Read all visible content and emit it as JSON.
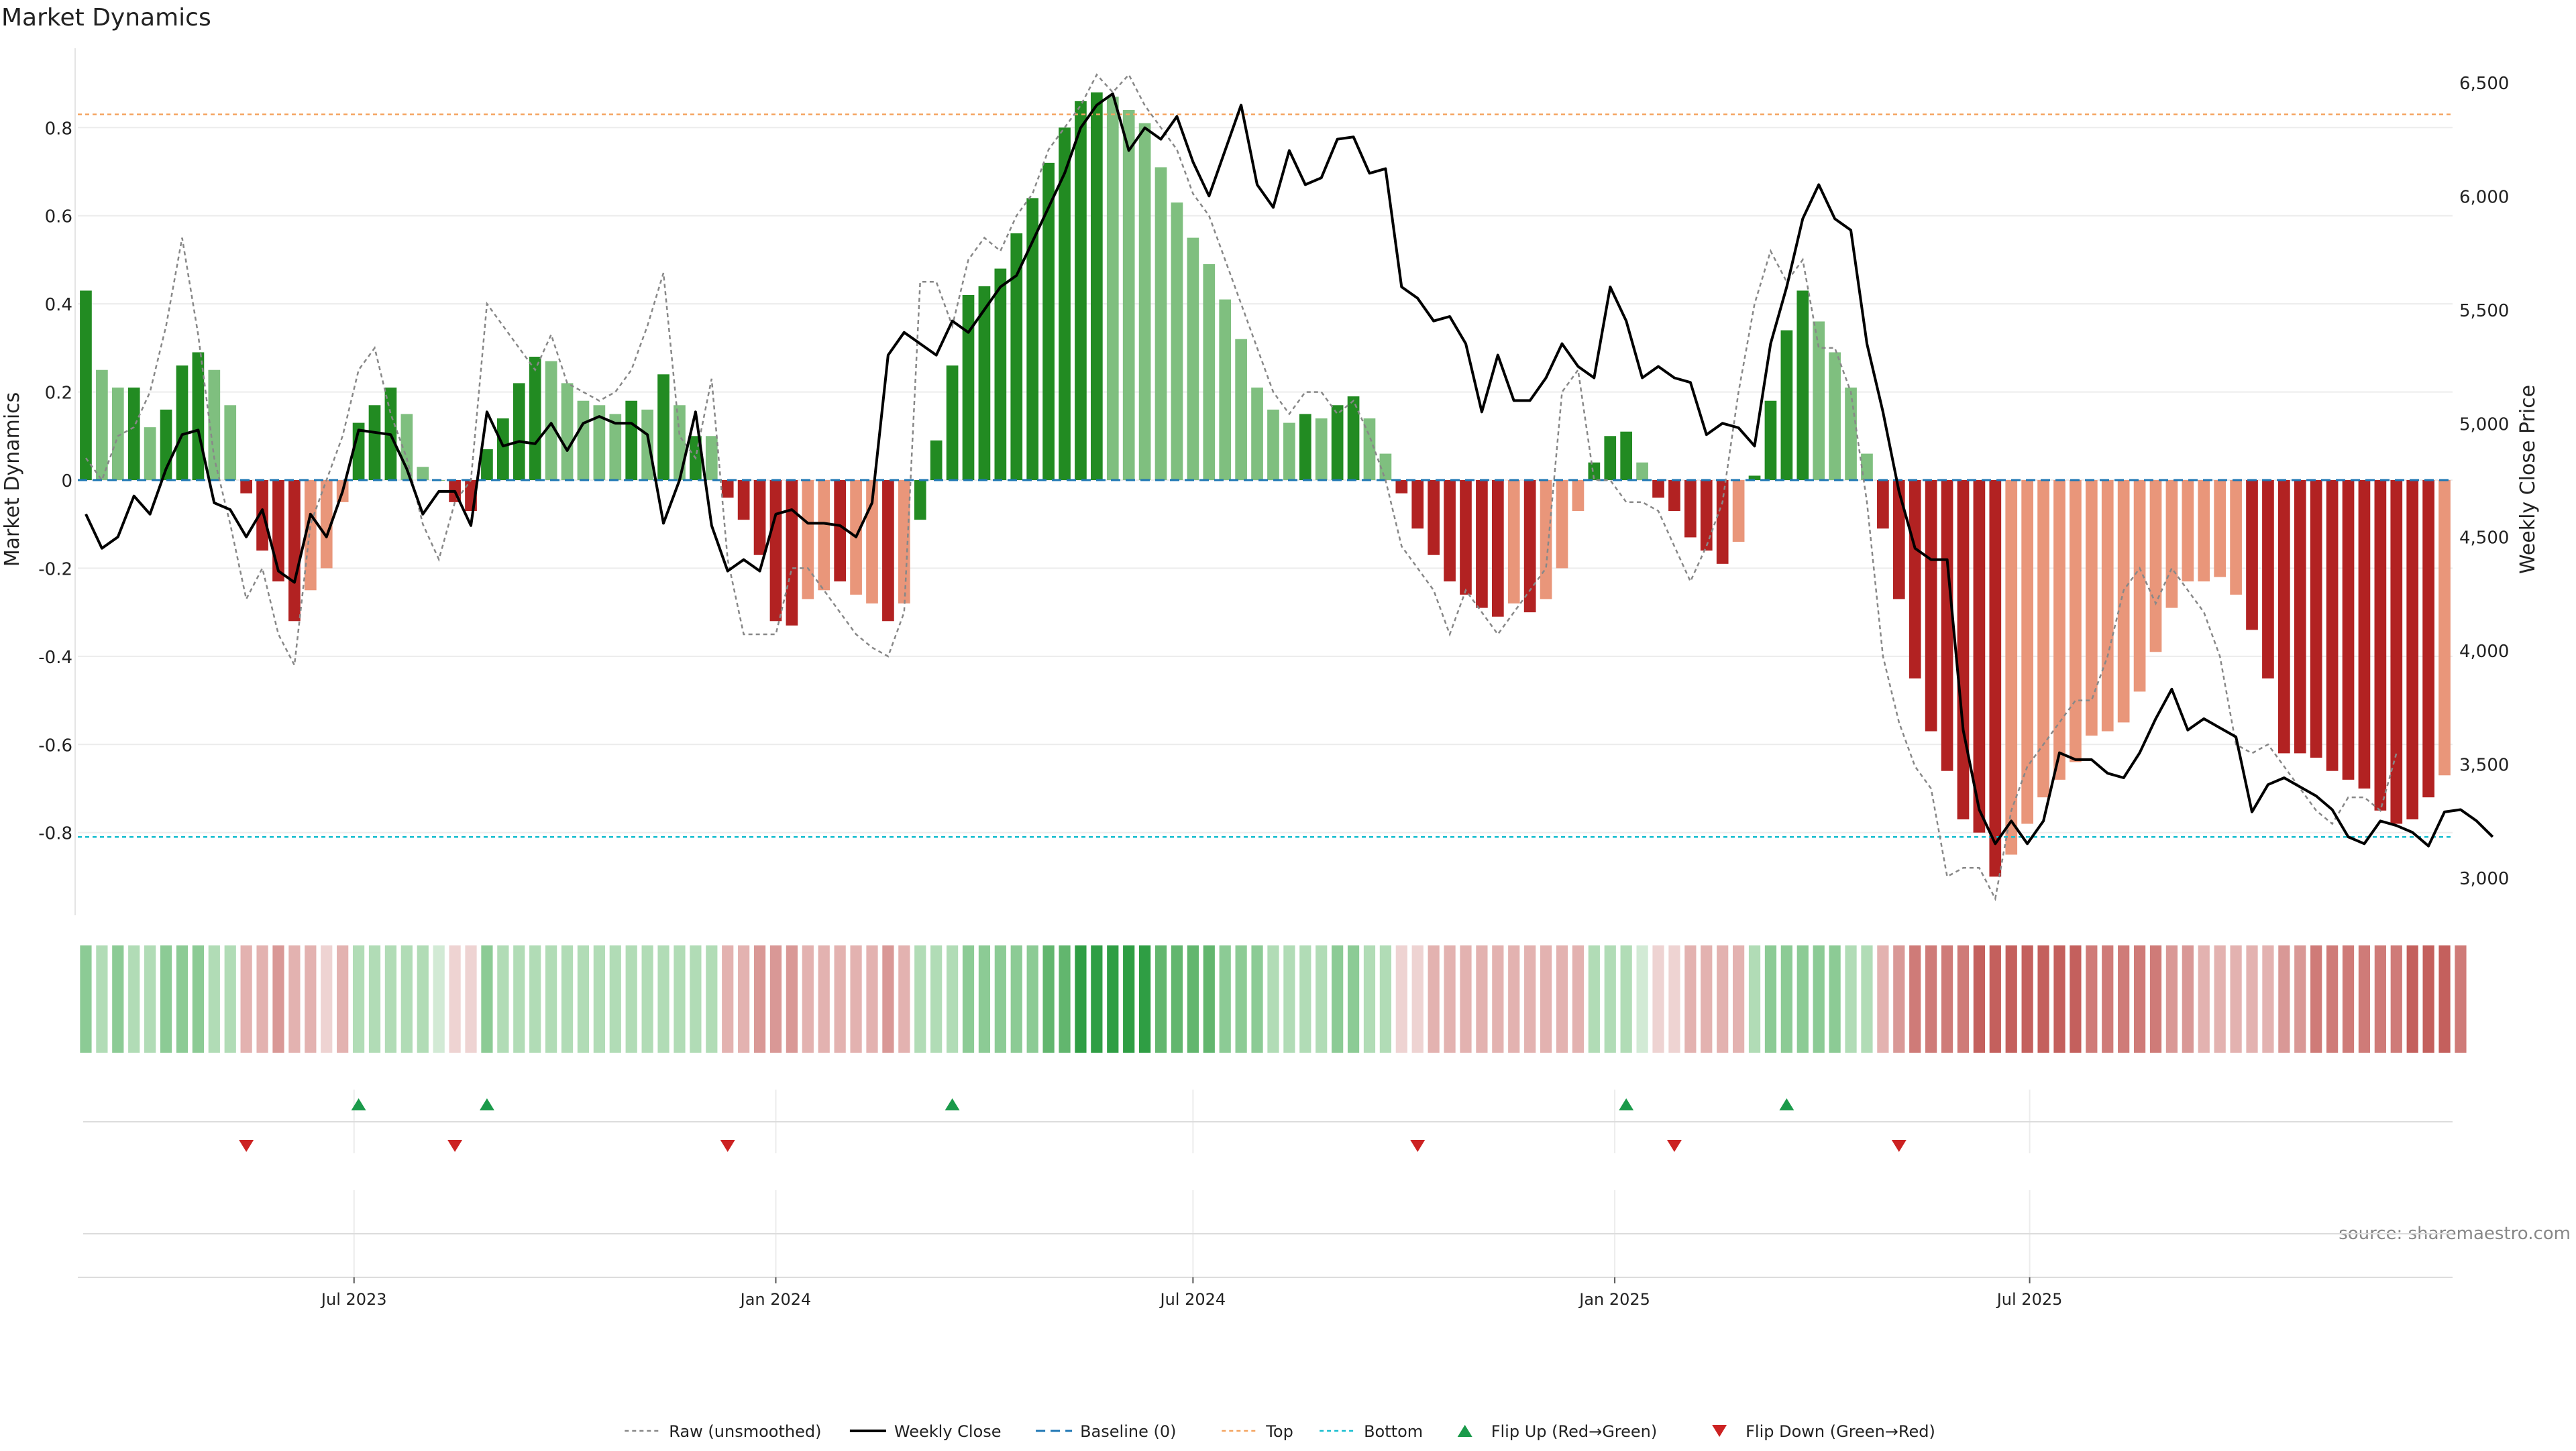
{
  "chart_data": {
    "type": "bar",
    "title": "Market Dynamics",
    "ylabel": "Market Dynamics",
    "y2label": "Weekly Close Price",
    "ylim": [
      -0.98,
      0.98
    ],
    "y2lim": [
      2850,
      6650
    ],
    "x_start": "2023-03-06",
    "x_step_days": 7,
    "y_ticks": [
      "-0.8",
      "-0.6",
      "-0.4",
      "-0.2",
      "0",
      "0.2",
      "0.4",
      "0.6",
      "0.8"
    ],
    "y2_ticks": [
      "3,000",
      "3,500",
      "4,000",
      "4,500",
      "5,000",
      "5,500",
      "6,000",
      "6,500"
    ],
    "x_ticks": [
      {
        "label": "Jul 2023",
        "date": "2023-07-01"
      },
      {
        "label": "Jan 2024",
        "date": "2024-01-01"
      },
      {
        "label": "Jul 2024",
        "date": "2024-07-01"
      },
      {
        "label": "Jan 2025",
        "date": "2025-01-01"
      },
      {
        "label": "Jul 2025",
        "date": "2025-07-01"
      }
    ],
    "top_level": 0.83,
    "bottom_level": -0.81,
    "baseline": 0,
    "grid": true,
    "colors": {
      "up_strong": "#228b22",
      "up_weak": "#7fbf7f",
      "down_strong": "#b22222",
      "down_weak": "#e9967a",
      "close": "#000000",
      "raw": "#888888",
      "baseline": "#1f77b4",
      "top": "#f4a460",
      "bottom": "#17becf",
      "flip_up": "#1a9a4a",
      "flip_down": "#cc2222"
    },
    "series": [
      {
        "name": "Market Dynamics",
        "values": [
          0.43,
          0.25,
          0.21,
          0.21,
          0.12,
          0.16,
          0.26,
          0.29,
          0.25,
          0.17,
          -0.03,
          -0.16,
          -0.23,
          -0.32,
          -0.25,
          -0.2,
          -0.05,
          0.13,
          0.17,
          0.21,
          0.15,
          0.03,
          0.0,
          -0.05,
          -0.07,
          0.07,
          0.14,
          0.22,
          0.28,
          0.27,
          0.22,
          0.18,
          0.17,
          0.15,
          0.18,
          0.16,
          0.24,
          0.17,
          0.1,
          0.1,
          -0.04,
          -0.09,
          -0.17,
          -0.32,
          -0.33,
          -0.27,
          -0.25,
          -0.23,
          -0.26,
          -0.28,
          -0.32,
          -0.28,
          -0.09,
          0.09,
          0.26,
          0.42,
          0.44,
          0.48,
          0.56,
          0.64,
          0.72,
          0.8,
          0.86,
          0.88,
          0.87,
          0.84,
          0.81,
          0.71,
          0.63,
          0.55,
          0.49,
          0.41,
          0.32,
          0.21,
          0.16,
          0.13,
          0.15,
          0.14,
          0.17,
          0.19,
          0.14,
          0.06,
          -0.03,
          -0.11,
          -0.17,
          -0.23,
          -0.26,
          -0.29,
          -0.31,
          -0.28,
          -0.3,
          -0.27,
          -0.2,
          -0.07,
          0.04,
          0.1,
          0.11,
          0.04,
          -0.04,
          -0.07,
          -0.13,
          -0.16,
          -0.19,
          -0.14,
          0.01,
          0.18,
          0.34,
          0.43,
          0.36,
          0.29,
          0.21,
          0.06,
          -0.11,
          -0.27,
          -0.45,
          -0.57,
          -0.66,
          -0.77,
          -0.8,
          -0.9,
          -0.85,
          -0.78,
          -0.72,
          -0.68,
          -0.64,
          -0.58,
          -0.57,
          -0.55,
          -0.48,
          -0.39,
          -0.29,
          -0.23,
          -0.23,
          -0.22,
          -0.26,
          -0.34,
          -0.45,
          -0.62,
          -0.62,
          -0.63,
          -0.66,
          -0.68,
          -0.7,
          -0.75,
          -0.78,
          -0.77,
          -0.72,
          -0.67
        ],
        "colors": [
          "up_strong",
          "up_weak",
          "up_weak",
          "up_strong",
          "up_weak",
          "up_strong",
          "up_strong",
          "up_strong",
          "up_weak",
          "up_weak",
          "down_strong",
          "down_strong",
          "down_strong",
          "down_strong",
          "down_weak",
          "down_weak",
          "down_weak",
          "up_strong",
          "up_strong",
          "up_strong",
          "up_weak",
          "up_weak",
          "up_weak",
          "down_strong",
          "down_strong",
          "up_strong",
          "up_strong",
          "up_strong",
          "up_strong",
          "up_weak",
          "up_weak",
          "up_weak",
          "up_weak",
          "up_weak",
          "up_strong",
          "up_weak",
          "up_strong",
          "up_weak",
          "up_strong",
          "up_weak",
          "down_strong",
          "down_strong",
          "down_strong",
          "down_strong",
          "down_strong",
          "down_weak",
          "down_weak",
          "down_strong",
          "down_weak",
          "down_weak",
          "down_strong",
          "down_weak",
          "up_strong",
          "up_strong",
          "up_strong",
          "up_strong",
          "up_strong",
          "up_strong",
          "up_strong",
          "up_strong",
          "up_strong",
          "up_strong",
          "up_strong",
          "up_strong",
          "up_weak",
          "up_weak",
          "up_weak",
          "up_weak",
          "up_weak",
          "up_weak",
          "up_weak",
          "up_weak",
          "up_weak",
          "up_weak",
          "up_weak",
          "up_weak",
          "up_strong",
          "up_weak",
          "up_strong",
          "up_strong",
          "up_weak",
          "up_weak",
          "down_strong",
          "down_strong",
          "down_strong",
          "down_strong",
          "down_strong",
          "down_strong",
          "down_strong",
          "down_weak",
          "down_strong",
          "down_weak",
          "down_weak",
          "down_weak",
          "up_strong",
          "up_strong",
          "up_strong",
          "up_weak",
          "down_strong",
          "down_strong",
          "down_strong",
          "down_strong",
          "down_strong",
          "down_weak",
          "up_strong",
          "up_strong",
          "up_strong",
          "up_strong",
          "up_weak",
          "up_weak",
          "up_weak",
          "up_weak",
          "down_strong",
          "down_strong",
          "down_strong",
          "down_strong",
          "down_strong",
          "down_strong",
          "down_strong",
          "down_strong",
          "down_weak",
          "down_weak",
          "down_weak",
          "down_weak",
          "down_weak",
          "down_weak",
          "down_weak",
          "down_weak",
          "down_weak",
          "down_weak",
          "down_weak",
          "down_weak",
          "down_weak",
          "down_weak",
          "down_weak",
          "down_strong",
          "down_strong",
          "down_strong",
          "down_strong",
          "down_strong",
          "down_strong",
          "down_strong",
          "down_strong",
          "down_strong",
          "down_strong",
          "down_strong",
          "down_strong",
          "down_weak",
          "down_weak"
        ]
      },
      {
        "name": "Raw (unsmoothed)",
        "values": [
          0.05,
          0.0,
          0.1,
          0.12,
          0.2,
          0.35,
          0.55,
          0.33,
          0.05,
          -0.1,
          -0.27,
          -0.2,
          -0.35,
          -0.42,
          -0.1,
          0.0,
          0.1,
          0.25,
          0.3,
          0.15,
          0.05,
          -0.1,
          -0.18,
          -0.05,
          0.0,
          0.4,
          0.35,
          0.3,
          0.25,
          0.33,
          0.22,
          0.2,
          0.18,
          0.2,
          0.25,
          0.35,
          0.47,
          0.1,
          0.05,
          0.23,
          -0.18,
          -0.35,
          -0.35,
          -0.35,
          -0.2,
          -0.2,
          -0.25,
          -0.3,
          -0.35,
          -0.38,
          -0.4,
          -0.3,
          0.45,
          0.45,
          0.35,
          0.5,
          0.55,
          0.52,
          0.6,
          0.65,
          0.75,
          0.8,
          0.85,
          0.92,
          0.88,
          0.92,
          0.85,
          0.8,
          0.75,
          0.65,
          0.6,
          0.5,
          0.4,
          0.3,
          0.2,
          0.15,
          0.2,
          0.2,
          0.15,
          0.18,
          0.1,
          0.0,
          -0.15,
          -0.2,
          -0.25,
          -0.35,
          -0.25,
          -0.3,
          -0.35,
          -0.3,
          -0.25,
          -0.2,
          0.2,
          0.25,
          0.0,
          0.0,
          -0.05,
          -0.05,
          -0.07,
          -0.15,
          -0.23,
          -0.15,
          -0.05,
          0.2,
          0.4,
          0.52,
          0.45,
          0.5,
          0.3,
          0.3,
          0.2,
          -0.05,
          -0.4,
          -0.55,
          -0.65,
          -0.7,
          -0.9,
          -0.88,
          -0.88,
          -0.95,
          -0.75,
          -0.65,
          -0.6,
          -0.55,
          -0.5,
          -0.5,
          -0.4,
          -0.25,
          -0.2,
          -0.28,
          -0.2,
          -0.25,
          -0.3,
          -0.4,
          -0.6,
          -0.62,
          -0.6,
          -0.65,
          -0.7,
          -0.75,
          -0.78,
          -0.72,
          -0.72,
          -0.75,
          -0.62
        ]
      },
      {
        "name": "Weekly Close",
        "values": [
          4600,
          4450,
          4500,
          4680,
          4600,
          4800,
          4950,
          4970,
          4650,
          4620,
          4500,
          4620,
          4350,
          4300,
          4600,
          4500,
          4700,
          4970,
          4960,
          4950,
          4800,
          4600,
          4700,
          4700,
          4550,
          5050,
          4900,
          4920,
          4910,
          5000,
          4880,
          5000,
          5030,
          5000,
          5000,
          4950,
          4560,
          4750,
          5050,
          4550,
          4350,
          4400,
          4350,
          4600,
          4620,
          4560,
          4560,
          4550,
          4500,
          4650,
          5300,
          5400,
          5350,
          5300,
          5450,
          5400,
          5500,
          5600,
          5650,
          5800,
          5950,
          6100,
          6300,
          6400,
          6450,
          6200,
          6300,
          6250,
          6350,
          6150,
          6000,
          6200,
          6400,
          6050,
          5950,
          6200,
          6050,
          6080,
          6250,
          6260,
          6100,
          6120,
          5600,
          5550,
          5450,
          5470,
          5350,
          5050,
          5300,
          5100,
          5100,
          5200,
          5350,
          5250,
          5200,
          5600,
          5450,
          5200,
          5250,
          5200,
          5180,
          4950,
          5000,
          4980,
          4900,
          5350,
          5600,
          5900,
          6050,
          5900,
          5850,
          5350,
          5050,
          4700,
          4450,
          4400,
          4400,
          3650,
          3300,
          3150,
          3250,
          3150,
          3250,
          3550,
          3520,
          3520,
          3460,
          3440,
          3550,
          3700,
          3830,
          3650,
          3700,
          3660,
          3620,
          3290,
          3410,
          3440,
          3400,
          3360,
          3300,
          3180,
          3150,
          3250,
          3230,
          3200,
          3140,
          3290,
          3300,
          3250,
          3180
        ]
      }
    ],
    "flip_up_indices": [
      17,
      25,
      54,
      96,
      106
    ],
    "flip_down_indices": [
      10,
      23,
      40,
      83,
      99,
      113
    ],
    "heat_shades": [
      "#2f9e44",
      "#62b66e",
      "#8ccb95",
      "#b1dcb6",
      "#d2ead5",
      "#eed3d2",
      "#e3b2b0",
      "#d99896",
      "#cf7b78",
      "#c4605d"
    ],
    "heat_indices": [
      2,
      3,
      2,
      3,
      3,
      2,
      2,
      2,
      3,
      3,
      6,
      6,
      7,
      6,
      6,
      5,
      6,
      3,
      3,
      3,
      3,
      3,
      4,
      5,
      5,
      2,
      3,
      3,
      3,
      3,
      3,
      3,
      3,
      3,
      3,
      3,
      3,
      3,
      3,
      3,
      6,
      6,
      7,
      7,
      7,
      6,
      6,
      6,
      6,
      6,
      7,
      6,
      3,
      3,
      3,
      2,
      2,
      2,
      2,
      2,
      1,
      1,
      0,
      0,
      0,
      0,
      0,
      1,
      1,
      1,
      1,
      2,
      2,
      2,
      3,
      3,
      3,
      3,
      2,
      2,
      3,
      3,
      5,
      5,
      6,
      6,
      6,
      6,
      6,
      6,
      6,
      6,
      6,
      6,
      3,
      3,
      3,
      4,
      5,
      5,
      6,
      6,
      6,
      6,
      3,
      2,
      2,
      2,
      2,
      2,
      3,
      3,
      6,
      7,
      8,
      8,
      8,
      8,
      9,
      9,
      9,
      9,
      9,
      9,
      9,
      8,
      8,
      8,
      8,
      8,
      7,
      7,
      6,
      6,
      6,
      6,
      6,
      7,
      7,
      8,
      8,
      8,
      8,
      8,
      8,
      9,
      9,
      9,
      8
    ],
    "footer": "source: sharemaestro.com"
  },
  "legend": {
    "items": [
      {
        "label": "Raw (unsmoothed)",
        "style": "raw"
      },
      {
        "label": "Weekly Close",
        "style": "close"
      },
      {
        "label": "Baseline (0)",
        "style": "baseline"
      },
      {
        "label": "Top",
        "style": "top"
      },
      {
        "label": "Bottom",
        "style": "bottom"
      },
      {
        "label": "Flip Up (Red→Green)",
        "style": "flipup"
      },
      {
        "label": "Flip Down (Green→Red)",
        "style": "flipdown"
      }
    ]
  }
}
